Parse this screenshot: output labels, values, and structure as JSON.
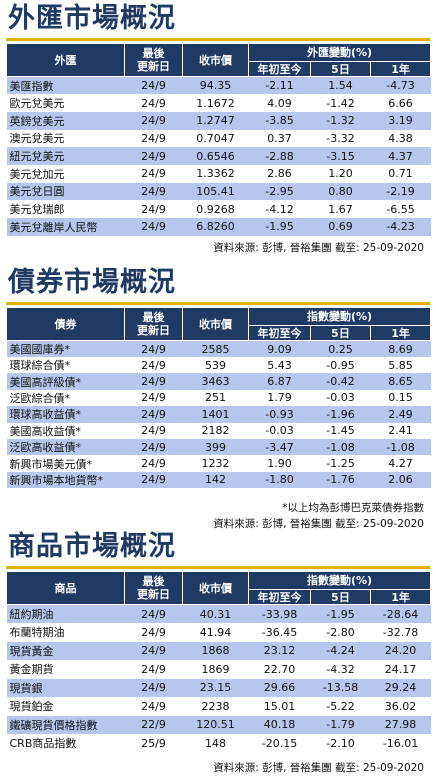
{
  "fx": {
    "title": "外匯市場概況",
    "headers": {
      "name": "外匯",
      "date": "最後\n更新日",
      "close": "收市價",
      "change": "外匯變動(%)",
      "ytd": "年初至今",
      "d5": "5日",
      "y1": "1年"
    },
    "rows": [
      {
        "name": "美匯指數",
        "date": "24/9",
        "close": "94.35",
        "ytd": "-2.11",
        "d5": "1.54",
        "y1": "-4.73"
      },
      {
        "name": "歐元兌美元",
        "date": "24/9",
        "close": "1.1672",
        "ytd": "4.09",
        "d5": "-1.42",
        "y1": "6.66"
      },
      {
        "name": "英鎊兌美元",
        "date": "24/9",
        "close": "1.2747",
        "ytd": "-3.85",
        "d5": "-1.32",
        "y1": "3.19"
      },
      {
        "name": "澳元兌美元",
        "date": "24/9",
        "close": "0.7047",
        "ytd": "0.37",
        "d5": "-3.32",
        "y1": "4.38"
      },
      {
        "name": "紐元兌美元",
        "date": "24/9",
        "close": "0.6546",
        "ytd": "-2.88",
        "d5": "-3.15",
        "y1": "4.37"
      },
      {
        "name": "美元兌加元",
        "date": "24/9",
        "close": "1.3362",
        "ytd": "2.86",
        "d5": "1.20",
        "y1": "0.71"
      },
      {
        "name": "美元兌日圓",
        "date": "24/9",
        "close": "105.41",
        "ytd": "-2.95",
        "d5": "0.80",
        "y1": "-2.19"
      },
      {
        "name": "美元兌瑞郎",
        "date": "24/9",
        "close": "0.9268",
        "ytd": "-4.12",
        "d5": "1.67",
        "y1": "-6.55"
      },
      {
        "name": "美元兌離岸人民幣",
        "date": "24/9",
        "close": "6.8260",
        "ytd": "-1.95",
        "d5": "0.69",
        "y1": "-4.23"
      }
    ],
    "source": "資料來源: 彭博, 晉裕集團 截至: 25-09-2020"
  },
  "bonds": {
    "title": "債券市場概況",
    "headers": {
      "name": "債券",
      "date": "最後\n更新日",
      "close": "收市價",
      "change": "指數變動(%)",
      "ytd": "年初至今",
      "d5": "5日",
      "y1": "1年"
    },
    "rows": [
      {
        "name": "美國國庫券*",
        "date": "24/9",
        "close": "2585",
        "ytd": "9.09",
        "d5": "0.25",
        "y1": "8.69"
      },
      {
        "name": "環球綜合債*",
        "date": "24/9",
        "close": "539",
        "ytd": "5.43",
        "d5": "-0.95",
        "y1": "5.85"
      },
      {
        "name": "美國高評級債*",
        "date": "24/9",
        "close": "3463",
        "ytd": "6.87",
        "d5": "-0.42",
        "y1": "8.65"
      },
      {
        "name": "泛歐綜合債*",
        "date": "24/9",
        "close": "251",
        "ytd": "1.79",
        "d5": "-0.03",
        "y1": "0.15"
      },
      {
        "name": "環球高收益債*",
        "date": "24/9",
        "close": "1401",
        "ytd": "-0.93",
        "d5": "-1.96",
        "y1": "2.49"
      },
      {
        "name": "美國高收益債*",
        "date": "24/9",
        "close": "2182",
        "ytd": "-0.03",
        "d5": "-1.45",
        "y1": "2.41"
      },
      {
        "name": "泛歐高收益債*",
        "date": "24/9",
        "close": "399",
        "ytd": "-3.47",
        "d5": "-1.08",
        "y1": "-1.08"
      },
      {
        "name": "新興市場美元債*",
        "date": "24/9",
        "close": "1232",
        "ytd": "1.90",
        "d5": "-1.25",
        "y1": "4.27"
      },
      {
        "name": "新興市場本地貨幣*",
        "date": "24/9",
        "close": "142",
        "ytd": "-1.80",
        "d5": "-1.76",
        "y1": "2.06"
      }
    ],
    "note": "*以上均為彭博巴克萊債券指數",
    "source": "資料來源: 彭博, 晉裕集團 截至: 25-09-2020"
  },
  "commodities": {
    "title": "商品市場概況",
    "headers": {
      "name": "商品",
      "date": "最後\n更新日",
      "close": "收市價",
      "change": "指數變動(%)",
      "ytd": "年初至今",
      "d5": "5日",
      "y1": "1年"
    },
    "rows": [
      {
        "name": "紐約期油",
        "date": "24/9",
        "close": "40.31",
        "ytd": "-33.98",
        "d5": "-1.95",
        "y1": "-28.64"
      },
      {
        "name": "布蘭特期油",
        "date": "24/9",
        "close": "41.94",
        "ytd": "-36.45",
        "d5": "-2.80",
        "y1": "-32.78"
      },
      {
        "name": "現貨黃金",
        "date": "24/9",
        "close": "1868",
        "ytd": "23.12",
        "d5": "-4.24",
        "y1": "24.20"
      },
      {
        "name": "黃金期貨",
        "date": "24/9",
        "close": "1869",
        "ytd": "22.70",
        "d5": "-4.32",
        "y1": "24.17"
      },
      {
        "name": "現貨銀",
        "date": "24/9",
        "close": "23.15",
        "ytd": "29.66",
        "d5": "-13.58",
        "y1": "29.24"
      },
      {
        "name": "現貨鉑金",
        "date": "24/9",
        "close": "2238",
        "ytd": "15.01",
        "d5": "-5.22",
        "y1": "36.02"
      },
      {
        "name": "鐵礦現貨價格指數",
        "date": "22/9",
        "close": "120.51",
        "ytd": "40.18",
        "d5": "-1.79",
        "y1": "27.98"
      },
      {
        "name": "CRB商品指數",
        "date": "25/9",
        "close": "148",
        "ytd": "-20.15",
        "d5": "-2.10",
        "y1": "-16.01"
      }
    ],
    "source": "資料來源: 彭博, 晉裕集團 截至: 25-09-2020"
  }
}
